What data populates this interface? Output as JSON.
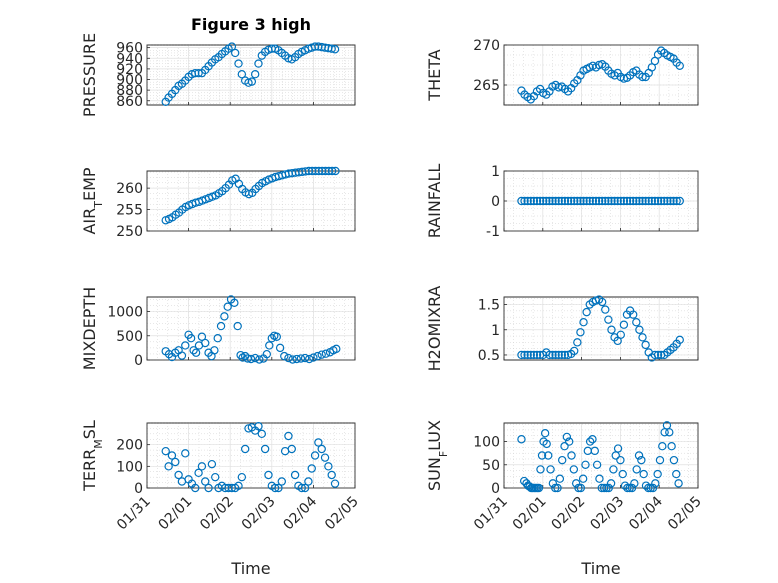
{
  "figure_title": "Figure 3 high",
  "colors": {
    "marker": "#0072bd",
    "axis": "#262626",
    "grid": "#d9d9d9"
  },
  "x_axis": {
    "label": "Time",
    "ticks": [
      0,
      1,
      2,
      3,
      4,
      5
    ],
    "tick_labels": [
      "01/31",
      "02/01",
      "02/02",
      "02/03",
      "02/04",
      "02/05"
    ]
  },
  "chart_data": [
    {
      "type": "scatter",
      "ylabel": "PRESSURE",
      "ylim": [
        852,
        965
      ],
      "yticks": [
        860,
        880,
        900,
        920,
        940,
        960
      ],
      "x": [
        0.45,
        0.52,
        0.6,
        0.68,
        0.76,
        0.84,
        0.92,
        1.0,
        1.08,
        1.16,
        1.24,
        1.32,
        1.4,
        1.48,
        1.56,
        1.64,
        1.72,
        1.8,
        1.88,
        1.96,
        2.04,
        2.12,
        2.2,
        2.28,
        2.36,
        2.44,
        2.52,
        2.6,
        2.68,
        2.76,
        2.84,
        2.92,
        3.0,
        3.08,
        3.16,
        3.24,
        3.32,
        3.4,
        3.48,
        3.56,
        3.64,
        3.72,
        3.8,
        3.88,
        3.96,
        4.04,
        4.12,
        4.2,
        4.28,
        4.36,
        4.44,
        4.52
      ],
      "values": [
        858,
        866,
        873,
        880,
        888,
        892,
        898,
        905,
        910,
        912,
        912,
        912,
        918,
        925,
        932,
        938,
        942,
        948,
        953,
        958,
        962,
        950,
        930,
        910,
        898,
        894,
        896,
        910,
        930,
        945,
        952,
        956,
        958,
        958,
        955,
        950,
        945,
        940,
        938,
        942,
        948,
        952,
        955,
        958,
        960,
        962,
        962,
        961,
        960,
        959,
        958,
        957
      ]
    },
    {
      "type": "scatter",
      "ylabel": "THETA",
      "ylim": [
        262.5,
        270
      ],
      "yticks": [
        265,
        270
      ],
      "x": [
        0.45,
        0.53,
        0.61,
        0.69,
        0.77,
        0.85,
        0.93,
        1.01,
        1.09,
        1.17,
        1.25,
        1.33,
        1.41,
        1.49,
        1.57,
        1.65,
        1.73,
        1.81,
        1.89,
        1.97,
        2.05,
        2.13,
        2.21,
        2.29,
        2.37,
        2.45,
        2.53,
        2.61,
        2.69,
        2.77,
        2.85,
        2.93,
        3.01,
        3.09,
        3.17,
        3.25,
        3.33,
        3.41,
        3.49,
        3.57,
        3.65,
        3.73,
        3.81,
        3.89,
        3.97,
        4.05,
        4.13,
        4.21,
        4.29,
        4.37,
        4.45,
        4.53
      ],
      "values": [
        264.3,
        263.8,
        263.5,
        263.2,
        263.6,
        264.2,
        264.5,
        264.0,
        263.8,
        264.2,
        264.8,
        265.0,
        264.7,
        264.8,
        264.5,
        264.2,
        264.6,
        265.2,
        265.6,
        266.2,
        266.8,
        267.0,
        267.2,
        267.4,
        267.2,
        267.5,
        267.6,
        267.3,
        266.8,
        266.4,
        266.2,
        266.5,
        266.0,
        265.8,
        265.9,
        266.2,
        266.6,
        266.8,
        266.3,
        266.0,
        266.0,
        266.5,
        267.2,
        268.0,
        268.8,
        269.3,
        269.0,
        268.7,
        268.5,
        268.3,
        267.8,
        267.4
      ]
    },
    {
      "type": "scatter",
      "ylabel": "AIR_TEMP",
      "ylim": [
        250,
        264
      ],
      "yticks": [
        250,
        255,
        260
      ],
      "x": [
        0.45,
        0.53,
        0.61,
        0.69,
        0.77,
        0.85,
        0.93,
        1.01,
        1.09,
        1.17,
        1.25,
        1.33,
        1.41,
        1.49,
        1.57,
        1.65,
        1.73,
        1.81,
        1.89,
        1.97,
        2.05,
        2.13,
        2.21,
        2.29,
        2.37,
        2.45,
        2.53,
        2.61,
        2.69,
        2.77,
        2.85,
        2.93,
        3.01,
        3.09,
        3.17,
        3.25,
        3.33,
        3.41,
        3.49,
        3.57,
        3.65,
        3.73,
        3.81,
        3.89,
        3.97,
        4.05,
        4.13,
        4.21,
        4.29,
        4.37,
        4.45,
        4.53
      ],
      "values": [
        252.5,
        252.8,
        253.2,
        253.8,
        254.3,
        255.0,
        255.6,
        256.0,
        256.3,
        256.6,
        256.8,
        257.1,
        257.4,
        257.7,
        258.0,
        258.3,
        258.8,
        259.3,
        260.0,
        260.8,
        261.8,
        262.2,
        261.0,
        259.8,
        259.0,
        258.6,
        258.9,
        259.8,
        260.5,
        261.2,
        261.6,
        262.0,
        262.3,
        262.6,
        262.8,
        263.0,
        263.2,
        263.4,
        263.5,
        263.6,
        263.7,
        263.8,
        263.9,
        264.0,
        264.0,
        264.1,
        264.1,
        264.2,
        264.2,
        264.2,
        264.2,
        264.2
      ]
    },
    {
      "type": "scatter",
      "ylabel": "RAINFALL",
      "ylim": [
        -1,
        1
      ],
      "yticks": [
        -1,
        0,
        1
      ],
      "x": [
        0.45,
        0.53,
        0.61,
        0.69,
        0.77,
        0.85,
        0.93,
        1.01,
        1.09,
        1.17,
        1.25,
        1.33,
        1.41,
        1.49,
        1.57,
        1.65,
        1.73,
        1.81,
        1.89,
        1.97,
        2.05,
        2.13,
        2.21,
        2.29,
        2.37,
        2.45,
        2.53,
        2.61,
        2.69,
        2.77,
        2.85,
        2.93,
        3.01,
        3.09,
        3.17,
        3.25,
        3.33,
        3.41,
        3.49,
        3.57,
        3.65,
        3.73,
        3.81,
        3.89,
        3.97,
        4.05,
        4.13,
        4.21,
        4.29,
        4.37,
        4.45,
        4.53
      ],
      "values": [
        0,
        0,
        0,
        0,
        0,
        0,
        0,
        0,
        0,
        0,
        0,
        0,
        0,
        0,
        0,
        0,
        0,
        0,
        0,
        0,
        0,
        0,
        0,
        0,
        0,
        0,
        0,
        0,
        0,
        0,
        0,
        0,
        0,
        0,
        0,
        0,
        0,
        0,
        0,
        0,
        0,
        0,
        0,
        0,
        0,
        0,
        0,
        0,
        0,
        0,
        0,
        0
      ]
    },
    {
      "type": "scatter",
      "ylabel": "MIXDEPTH",
      "ylim": [
        0,
        1300
      ],
      "yticks": [
        0,
        500,
        1000
      ],
      "x": [
        0.45,
        0.53,
        0.6,
        0.68,
        0.76,
        0.84,
        0.92,
        1.0,
        1.06,
        1.12,
        1.18,
        1.25,
        1.32,
        1.4,
        1.48,
        1.55,
        1.62,
        1.7,
        1.78,
        1.86,
        1.94,
        2.02,
        2.1,
        2.18,
        2.25,
        2.3,
        2.36,
        2.42,
        2.5,
        2.6,
        2.7,
        2.8,
        2.88,
        2.94,
        3.0,
        3.06,
        3.12,
        3.2,
        3.3,
        3.4,
        3.5,
        3.6,
        3.7,
        3.8,
        3.9,
        4.0,
        4.1,
        4.2,
        4.3,
        4.4,
        4.48,
        4.55
      ],
      "values": [
        180,
        120,
        60,
        150,
        200,
        90,
        300,
        520,
        450,
        200,
        150,
        300,
        480,
        350,
        150,
        80,
        200,
        450,
        700,
        900,
        1100,
        1250,
        1180,
        700,
        100,
        50,
        80,
        30,
        20,
        40,
        10,
        30,
        120,
        300,
        450,
        500,
        480,
        250,
        80,
        40,
        10,
        20,
        30,
        40,
        20,
        50,
        80,
        110,
        130,
        160,
        200,
        230
      ]
    },
    {
      "type": "scatter",
      "ylabel": "H2OMIXRA",
      "ylim": [
        0.4,
        1.65
      ],
      "yticks": [
        0.5,
        1,
        1.5
      ],
      "x": [
        0.45,
        0.53,
        0.61,
        0.69,
        0.77,
        0.85,
        0.93,
        1.01,
        1.09,
        1.17,
        1.25,
        1.33,
        1.41,
        1.49,
        1.57,
        1.65,
        1.73,
        1.81,
        1.89,
        1.97,
        2.05,
        2.13,
        2.21,
        2.29,
        2.37,
        2.45,
        2.53,
        2.61,
        2.69,
        2.77,
        2.85,
        2.93,
        3.01,
        3.09,
        3.17,
        3.25,
        3.33,
        3.41,
        3.49,
        3.57,
        3.65,
        3.73,
        3.81,
        3.89,
        3.97,
        4.05,
        4.13,
        4.21,
        4.29,
        4.37,
        4.45,
        4.53
      ],
      "values": [
        0.5,
        0.5,
        0.5,
        0.5,
        0.5,
        0.5,
        0.5,
        0.5,
        0.55,
        0.5,
        0.5,
        0.5,
        0.5,
        0.5,
        0.5,
        0.5,
        0.52,
        0.58,
        0.75,
        0.95,
        1.15,
        1.35,
        1.5,
        1.55,
        1.58,
        1.6,
        1.55,
        1.4,
        1.2,
        1.0,
        0.85,
        0.78,
        0.9,
        1.1,
        1.3,
        1.38,
        1.3,
        1.15,
        1.0,
        0.85,
        0.7,
        0.55,
        0.45,
        0.5,
        0.5,
        0.5,
        0.5,
        0.55,
        0.6,
        0.65,
        0.72,
        0.8
      ]
    },
    {
      "type": "scatter",
      "ylabel": "TERR_MSL",
      "ylim": [
        0,
        300
      ],
      "yticks": [
        0,
        100,
        200
      ],
      "x": [
        0.45,
        0.52,
        0.6,
        0.68,
        0.76,
        0.84,
        0.92,
        1.0,
        1.08,
        1.16,
        1.24,
        1.32,
        1.4,
        1.48,
        1.56,
        1.64,
        1.72,
        1.8,
        1.88,
        1.96,
        2.04,
        2.12,
        2.2,
        2.28,
        2.36,
        2.44,
        2.52,
        2.6,
        2.68,
        2.76,
        2.84,
        2.92,
        3.0,
        3.08,
        3.16,
        3.24,
        3.32,
        3.4,
        3.48,
        3.56,
        3.64,
        3.72,
        3.8,
        3.88,
        3.96,
        4.04,
        4.12,
        4.2,
        4.28,
        4.36,
        4.44,
        4.52
      ],
      "values": [
        170,
        100,
        150,
        120,
        60,
        30,
        160,
        40,
        20,
        0,
        70,
        100,
        30,
        0,
        110,
        50,
        0,
        10,
        0,
        0,
        0,
        0,
        10,
        50,
        180,
        275,
        280,
        265,
        285,
        250,
        180,
        60,
        10,
        0,
        0,
        30,
        170,
        240,
        180,
        60,
        10,
        0,
        0,
        30,
        90,
        150,
        210,
        180,
        140,
        100,
        60,
        20
      ]
    },
    {
      "type": "scatter",
      "ylabel": "SUN_FLUX",
      "ylim": [
        0,
        140
      ],
      "yticks": [
        0,
        50,
        100
      ],
      "x": [
        0.45,
        0.52,
        0.58,
        0.62,
        0.66,
        0.7,
        0.74,
        0.78,
        0.82,
        0.86,
        0.9,
        0.94,
        0.98,
        1.02,
        1.06,
        1.1,
        1.14,
        1.2,
        1.26,
        1.32,
        1.38,
        1.44,
        1.5,
        1.56,
        1.62,
        1.68,
        1.74,
        1.8,
        1.86,
        1.92,
        1.98,
        2.04,
        2.1,
        2.16,
        2.22,
        2.28,
        2.34,
        2.4,
        2.46,
        2.52,
        2.58,
        2.64,
        2.7,
        2.76,
        2.82,
        2.88,
        2.94,
        3.0,
        3.06,
        3.12,
        3.18,
        3.24,
        3.3,
        3.36,
        3.42,
        3.48,
        3.54,
        3.6,
        3.66,
        3.72,
        3.78,
        3.84,
        3.9,
        3.96,
        4.02,
        4.08,
        4.14,
        4.2,
        4.26,
        4.32,
        4.38,
        4.44,
        4.5
      ],
      "values": [
        105,
        15,
        10,
        5,
        3,
        0,
        0,
        0,
        0,
        0,
        0,
        40,
        70,
        100,
        118,
        95,
        70,
        40,
        10,
        0,
        0,
        20,
        60,
        90,
        110,
        100,
        70,
        40,
        10,
        0,
        0,
        20,
        50,
        80,
        100,
        105,
        80,
        50,
        20,
        0,
        0,
        0,
        0,
        10,
        40,
        70,
        85,
        60,
        30,
        5,
        0,
        0,
        0,
        10,
        40,
        70,
        60,
        30,
        5,
        0,
        0,
        0,
        10,
        30,
        60,
        90,
        120,
        135,
        120,
        90,
        60,
        30,
        10
      ]
    }
  ]
}
